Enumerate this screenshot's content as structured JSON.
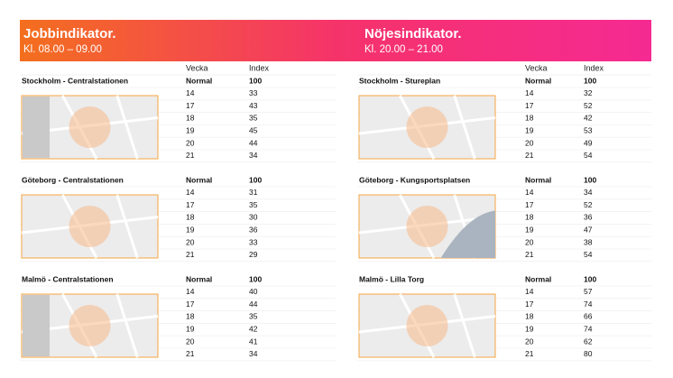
{
  "header": {
    "left": {
      "title": "Jobbindikator.",
      "subtitle": "Kl. 08.00 – 09.00"
    },
    "right": {
      "title": "Nöjesindikator.",
      "subtitle": "Kl. 20.00 – 21.00"
    }
  },
  "columns": [
    "Vecka",
    "Index"
  ],
  "panels": [
    {
      "locations": [
        {
          "name": "Stockholm - Centralstationen",
          "rows": [
            [
              "Normal",
              100
            ],
            [
              14,
              33
            ],
            [
              17,
              43
            ],
            [
              18,
              35
            ],
            [
              19,
              45
            ],
            [
              20,
              44
            ],
            [
              21,
              34
            ]
          ]
        },
        {
          "name": "Göteborg - Centralstationen",
          "rows": [
            [
              "Normal",
              100
            ],
            [
              14,
              31
            ],
            [
              17,
              35
            ],
            [
              18,
              30
            ],
            [
              19,
              36
            ],
            [
              20,
              33
            ],
            [
              21,
              29
            ]
          ]
        },
        {
          "name": "Malmö - Centralstationen",
          "rows": [
            [
              "Normal",
              100
            ],
            [
              14,
              40
            ],
            [
              17,
              44
            ],
            [
              18,
              35
            ],
            [
              19,
              42
            ],
            [
              20,
              41
            ],
            [
              21,
              34
            ]
          ]
        }
      ]
    },
    {
      "locations": [
        {
          "name": "Stockholm - Stureplan",
          "rows": [
            [
              "Normal",
              100
            ],
            [
              14,
              32
            ],
            [
              17,
              52
            ],
            [
              18,
              42
            ],
            [
              19,
              53
            ],
            [
              20,
              49
            ],
            [
              21,
              54
            ]
          ]
        },
        {
          "name": "Göteborg - Kungsportsplatsen",
          "rows": [
            [
              "Normal",
              100
            ],
            [
              14,
              34
            ],
            [
              17,
              52
            ],
            [
              18,
              36
            ],
            [
              19,
              47
            ],
            [
              20,
              38
            ],
            [
              21,
              54
            ]
          ]
        },
        {
          "name": "Malmö - Lilla Torg",
          "rows": [
            [
              "Normal",
              100
            ],
            [
              14,
              57
            ],
            [
              17,
              74
            ],
            [
              18,
              66
            ],
            [
              19,
              74
            ],
            [
              20,
              62
            ],
            [
              21,
              80
            ]
          ]
        }
      ]
    }
  ]
}
